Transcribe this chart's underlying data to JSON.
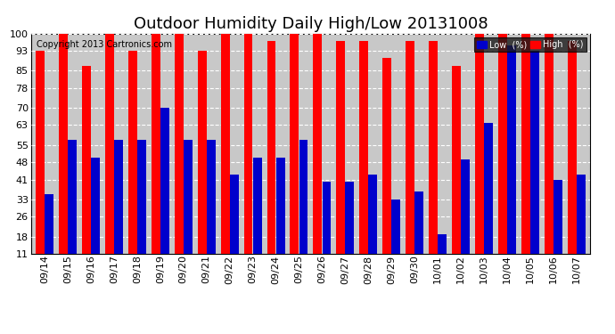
{
  "title": "Outdoor Humidity Daily High/Low 20131008",
  "copyright": "Copyright 2013 Cartronics.com",
  "dates": [
    "09/14",
    "09/15",
    "09/16",
    "09/17",
    "09/18",
    "09/19",
    "09/20",
    "09/21",
    "09/22",
    "09/23",
    "09/24",
    "09/25",
    "09/26",
    "09/27",
    "09/28",
    "09/29",
    "09/30",
    "10/01",
    "10/02",
    "10/03",
    "10/04",
    "10/05",
    "10/06",
    "10/07"
  ],
  "high": [
    93,
    100,
    87,
    100,
    93,
    100,
    100,
    93,
    100,
    100,
    97,
    100,
    100,
    97,
    97,
    90,
    97,
    97,
    87,
    100,
    100,
    100,
    100,
    97
  ],
  "low": [
    35,
    57,
    50,
    57,
    57,
    70,
    57,
    57,
    43,
    50,
    50,
    57,
    40,
    40,
    43,
    33,
    36,
    19,
    49,
    64,
    95,
    93,
    41,
    43
  ],
  "high_color": "#ff0000",
  "low_color": "#0000cc",
  "bg_color": "#ffffff",
  "plot_bg_color": "#c8c8c8",
  "grid_color": "#ffffff",
  "yticks": [
    11,
    18,
    26,
    33,
    41,
    48,
    55,
    63,
    70,
    78,
    85,
    93,
    100
  ],
  "ymin": 11,
  "ymax": 100,
  "title_fontsize": 13,
  "tick_fontsize": 8,
  "copyright_fontsize": 7,
  "legend_low_label": "Low  (%)",
  "legend_high_label": "High  (%)"
}
